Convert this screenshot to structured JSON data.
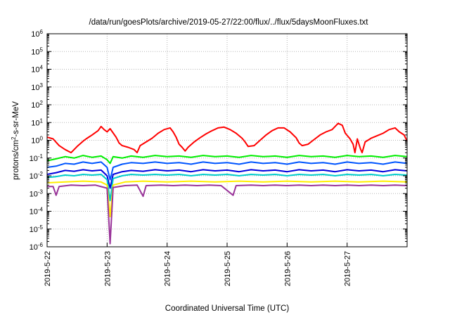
{
  "chart_data": {
    "type": "line",
    "title": "/data/run/goesPlots/archive/2019-05-27/22:00/flux/../flux/5daysMoonFluxes.txt",
    "xlabel": "Coordinated Universal Time (UTC)",
    "ylabel_parts": {
      "base": "protons/cm",
      "sup": "2",
      "rest": "-s-sr-MeV"
    },
    "yscale": "log",
    "ylim": [
      1e-06,
      1000000.0
    ],
    "xlim": [
      "2019-05-22",
      "2019-05-28"
    ],
    "grid": true,
    "legend": "none",
    "x_tick_labels": [
      "2019-5-22",
      "2019-5-23",
      "2019-5-24",
      "2019-5-25",
      "2019-5-26",
      "2019-5-27"
    ],
    "y_ticks": [
      {
        "base": "10",
        "exp": "-6"
      },
      {
        "base": "10",
        "exp": "-5"
      },
      {
        "base": "10",
        "exp": "-4"
      },
      {
        "base": "10",
        "exp": "-3"
      },
      {
        "base": "10",
        "exp": "-2"
      },
      {
        "base": "10",
        "exp": "-1"
      },
      {
        "base": "10",
        "exp": "0"
      },
      {
        "base": "10",
        "exp": "1"
      },
      {
        "base": "10",
        "exp": "2"
      },
      {
        "base": "10",
        "exp": "3"
      },
      {
        "base": "10",
        "exp": "4"
      },
      {
        "base": "10",
        "exp": "5"
      },
      {
        "base": "10",
        "exp": "6"
      }
    ],
    "series": [
      {
        "color": "#ff0000",
        "points": [
          [
            0,
            1.5
          ],
          [
            0.1,
            1.2
          ],
          [
            0.2,
            0.5
          ],
          [
            0.3,
            0.3
          ],
          [
            0.4,
            0.2
          ],
          [
            0.5,
            0.45
          ],
          [
            0.6,
            0.9
          ],
          [
            0.65,
            1.2
          ],
          [
            0.75,
            2
          ],
          [
            0.85,
            3.5
          ],
          [
            0.9,
            6
          ],
          [
            0.95,
            4
          ],
          [
            1.0,
            3
          ],
          [
            1.05,
            4.5
          ],
          [
            1.15,
            1.5
          ],
          [
            1.2,
            0.7
          ],
          [
            1.25,
            0.5
          ],
          [
            1.35,
            0.4
          ],
          [
            1.45,
            0.3
          ],
          [
            1.5,
            0.2
          ],
          [
            1.55,
            0.5
          ],
          [
            1.65,
            0.8
          ],
          [
            1.75,
            1.3
          ],
          [
            1.85,
            2.5
          ],
          [
            1.95,
            4
          ],
          [
            2.05,
            5
          ],
          [
            2.1,
            3
          ],
          [
            2.15,
            1.5
          ],
          [
            2.2,
            0.6
          ],
          [
            2.25,
            0.4
          ],
          [
            2.3,
            0.25
          ],
          [
            2.35,
            0.4
          ],
          [
            2.45,
            0.8
          ],
          [
            2.55,
            1.4
          ],
          [
            2.65,
            2.3
          ],
          [
            2.75,
            3.5
          ],
          [
            2.85,
            5
          ],
          [
            2.95,
            5.5
          ],
          [
            3.05,
            4
          ],
          [
            3.15,
            2.5
          ],
          [
            3.25,
            1.3
          ],
          [
            3.3,
            0.8
          ],
          [
            3.35,
            0.45
          ],
          [
            3.45,
            0.5
          ],
          [
            3.55,
            1
          ],
          [
            3.65,
            2
          ],
          [
            3.75,
            3.5
          ],
          [
            3.85,
            5
          ],
          [
            3.95,
            5
          ],
          [
            4.05,
            3
          ],
          [
            4.15,
            1.4
          ],
          [
            4.2,
            0.7
          ],
          [
            4.25,
            0.5
          ],
          [
            4.35,
            0.6
          ],
          [
            4.45,
            1.1
          ],
          [
            4.55,
            2
          ],
          [
            4.65,
            3
          ],
          [
            4.75,
            4
          ],
          [
            4.85,
            9
          ],
          [
            4.92,
            7
          ],
          [
            4.97,
            2.5
          ],
          [
            5.05,
            1.2
          ],
          [
            5.1,
            0.6
          ],
          [
            5.13,
            0.2
          ],
          [
            5.17,
            1.2
          ],
          [
            5.22,
            0.35
          ],
          [
            5.25,
            0.2
          ],
          [
            5.3,
            0.8
          ],
          [
            5.4,
            1.3
          ],
          [
            5.5,
            1.8
          ],
          [
            5.6,
            2.5
          ],
          [
            5.7,
            4
          ],
          [
            5.8,
            5
          ],
          [
            5.87,
            3
          ],
          [
            5.95,
            2
          ],
          [
            6.0,
            0.9
          ]
        ]
      },
      {
        "color": "#00ee00",
        "points": [
          [
            0,
            0.07
          ],
          [
            0.15,
            0.09
          ],
          [
            0.3,
            0.12
          ],
          [
            0.45,
            0.1
          ],
          [
            0.6,
            0.14
          ],
          [
            0.75,
            0.11
          ],
          [
            0.9,
            0.13
          ],
          [
            1.0,
            0.08
          ],
          [
            1.05,
            0.05
          ],
          [
            1.1,
            0.12
          ],
          [
            1.25,
            0.1
          ],
          [
            1.4,
            0.13
          ],
          [
            1.6,
            0.11
          ],
          [
            1.8,
            0.14
          ],
          [
            2.0,
            0.12
          ],
          [
            2.2,
            0.13
          ],
          [
            2.4,
            0.11
          ],
          [
            2.6,
            0.14
          ],
          [
            2.8,
            0.12
          ],
          [
            3.0,
            0.13
          ],
          [
            3.2,
            0.11
          ],
          [
            3.4,
            0.14
          ],
          [
            3.6,
            0.12
          ],
          [
            3.8,
            0.13
          ],
          [
            4.0,
            0.11
          ],
          [
            4.2,
            0.14
          ],
          [
            4.4,
            0.12
          ],
          [
            4.6,
            0.13
          ],
          [
            4.8,
            0.11
          ],
          [
            5.0,
            0.14
          ],
          [
            5.2,
            0.12
          ],
          [
            5.4,
            0.13
          ],
          [
            5.6,
            0.11
          ],
          [
            5.8,
            0.14
          ],
          [
            6.0,
            0.12
          ]
        ]
      },
      {
        "color": "#0055ff",
        "points": [
          [
            0,
            0.03
          ],
          [
            0.15,
            0.035
          ],
          [
            0.3,
            0.05
          ],
          [
            0.45,
            0.045
          ],
          [
            0.6,
            0.06
          ],
          [
            0.75,
            0.05
          ],
          [
            0.9,
            0.06
          ],
          [
            1.0,
            0.03
          ],
          [
            1.05,
            0.006
          ],
          [
            1.1,
            0.03
          ],
          [
            1.25,
            0.045
          ],
          [
            1.4,
            0.055
          ],
          [
            1.6,
            0.05
          ],
          [
            1.8,
            0.06
          ],
          [
            2.0,
            0.05
          ],
          [
            2.2,
            0.055
          ],
          [
            2.4,
            0.045
          ],
          [
            2.6,
            0.06
          ],
          [
            2.8,
            0.05
          ],
          [
            3.0,
            0.055
          ],
          [
            3.2,
            0.045
          ],
          [
            3.4,
            0.06
          ],
          [
            3.6,
            0.05
          ],
          [
            3.8,
            0.055
          ],
          [
            4.0,
            0.045
          ],
          [
            4.2,
            0.06
          ],
          [
            4.4,
            0.05
          ],
          [
            4.6,
            0.055
          ],
          [
            4.8,
            0.045
          ],
          [
            5.0,
            0.06
          ],
          [
            5.2,
            0.05
          ],
          [
            5.4,
            0.055
          ],
          [
            5.6,
            0.045
          ],
          [
            5.8,
            0.06
          ],
          [
            6.0,
            0.05
          ]
        ]
      },
      {
        "color": "#0000dd",
        "points": [
          [
            0,
            0.012
          ],
          [
            0.15,
            0.015
          ],
          [
            0.3,
            0.02
          ],
          [
            0.45,
            0.018
          ],
          [
            0.6,
            0.022
          ],
          [
            0.75,
            0.019
          ],
          [
            0.9,
            0.021
          ],
          [
            1.0,
            0.01
          ],
          [
            1.05,
            0.002
          ],
          [
            1.1,
            0.012
          ],
          [
            1.25,
            0.017
          ],
          [
            1.4,
            0.02
          ],
          [
            1.6,
            0.018
          ],
          [
            1.8,
            0.022
          ],
          [
            2.0,
            0.019
          ],
          [
            2.2,
            0.021
          ],
          [
            2.4,
            0.017
          ],
          [
            2.6,
            0.022
          ],
          [
            2.8,
            0.019
          ],
          [
            3.0,
            0.021
          ],
          [
            3.2,
            0.017
          ],
          [
            3.4,
            0.022
          ],
          [
            3.6,
            0.019
          ],
          [
            3.8,
            0.021
          ],
          [
            4.0,
            0.017
          ],
          [
            4.2,
            0.022
          ],
          [
            4.4,
            0.019
          ],
          [
            4.6,
            0.021
          ],
          [
            4.8,
            0.017
          ],
          [
            5.0,
            0.022
          ],
          [
            5.2,
            0.019
          ],
          [
            5.4,
            0.021
          ],
          [
            5.6,
            0.017
          ],
          [
            5.8,
            0.022
          ],
          [
            6.0,
            0.019
          ]
        ]
      },
      {
        "color": "#00cccc",
        "points": [
          [
            0,
            0.008
          ],
          [
            0.15,
            0.009
          ],
          [
            0.3,
            0.011
          ],
          [
            0.45,
            0.01
          ],
          [
            0.6,
            0.012
          ],
          [
            0.75,
            0.011
          ],
          [
            0.9,
            0.012
          ],
          [
            1.0,
            0.006
          ],
          [
            1.05,
            0.0004
          ],
          [
            1.1,
            0.007
          ],
          [
            1.25,
            0.01
          ],
          [
            1.4,
            0.012
          ],
          [
            1.6,
            0.011
          ],
          [
            1.8,
            0.012
          ],
          [
            2.0,
            0.011
          ],
          [
            2.2,
            0.012
          ],
          [
            2.4,
            0.01
          ],
          [
            2.6,
            0.012
          ],
          [
            2.8,
            0.011
          ],
          [
            3.0,
            0.012
          ],
          [
            3.2,
            0.01
          ],
          [
            3.4,
            0.012
          ],
          [
            3.6,
            0.011
          ],
          [
            3.8,
            0.012
          ],
          [
            4.0,
            0.01
          ],
          [
            4.2,
            0.012
          ],
          [
            4.4,
            0.011
          ],
          [
            4.6,
            0.012
          ],
          [
            4.8,
            0.01
          ],
          [
            5.0,
            0.012
          ],
          [
            5.2,
            0.011
          ],
          [
            5.4,
            0.012
          ],
          [
            5.6,
            0.01
          ],
          [
            5.8,
            0.012
          ],
          [
            6.0,
            0.011
          ]
        ]
      },
      {
        "color": "#ffee00",
        "points": [
          [
            0,
            0.004
          ],
          [
            0.3,
            0.0045
          ],
          [
            0.6,
            0.005
          ],
          [
            0.9,
            0.0045
          ],
          [
            1.0,
            0.003
          ],
          [
            1.05,
            5e-05
          ],
          [
            1.1,
            0.003
          ],
          [
            1.3,
            0.0045
          ],
          [
            1.6,
            0.005
          ],
          [
            2.0,
            0.0045
          ],
          [
            2.4,
            0.005
          ],
          [
            2.8,
            0.0045
          ],
          [
            3.2,
            0.005
          ],
          [
            3.6,
            0.0045
          ],
          [
            4.0,
            0.005
          ],
          [
            4.4,
            0.0045
          ],
          [
            4.8,
            0.005
          ],
          [
            5.2,
            0.0045
          ],
          [
            5.6,
            0.005
          ],
          [
            6.0,
            0.0045
          ]
        ]
      },
      {
        "color": "#993399",
        "points": [
          [
            0,
            0.0025
          ],
          [
            0.1,
            0.0025
          ],
          [
            0.15,
            0.0008
          ],
          [
            0.2,
            0.0025
          ],
          [
            0.4,
            0.003
          ],
          [
            0.6,
            0.0028
          ],
          [
            0.8,
            0.003
          ],
          [
            1.0,
            0.002
          ],
          [
            1.05,
            1.5e-06
          ],
          [
            1.1,
            0.0022
          ],
          [
            1.3,
            0.0028
          ],
          [
            1.5,
            0.003
          ],
          [
            1.6,
            0.0007
          ],
          [
            1.65,
            0.0028
          ],
          [
            1.9,
            0.003
          ],
          [
            2.1,
            0.0028
          ],
          [
            2.3,
            0.003
          ],
          [
            2.5,
            0.0028
          ],
          [
            2.7,
            0.003
          ],
          [
            2.9,
            0.0028
          ],
          [
            3.1,
            0.0008
          ],
          [
            3.15,
            0.0028
          ],
          [
            3.4,
            0.003
          ],
          [
            3.6,
            0.0028
          ],
          [
            3.8,
            0.003
          ],
          [
            4.0,
            0.0028
          ],
          [
            4.2,
            0.003
          ],
          [
            4.4,
            0.0028
          ],
          [
            4.6,
            0.003
          ],
          [
            4.8,
            0.0028
          ],
          [
            5.0,
            0.003
          ],
          [
            5.2,
            0.0028
          ],
          [
            5.4,
            0.003
          ],
          [
            5.6,
            0.0028
          ],
          [
            5.8,
            0.003
          ],
          [
            6.0,
            0.0028
          ]
        ]
      }
    ]
  }
}
